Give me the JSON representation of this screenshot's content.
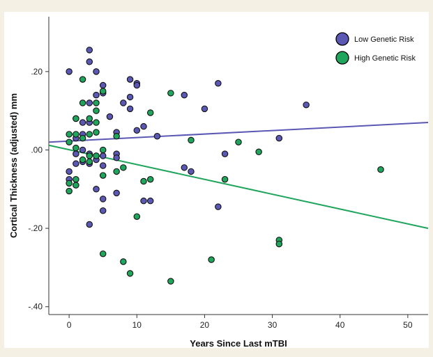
{
  "chart_data": {
    "type": "scatter",
    "xlabel": "Years Since Last mTBI",
    "ylabel": "Cortical Thickness (adjusted) mm",
    "xlim": [
      -3,
      53
    ],
    "ylim": [
      -0.42,
      0.34
    ],
    "xticks": [
      0,
      10,
      20,
      30,
      40,
      50
    ],
    "xtick_labels": [
      "0",
      "10",
      "20",
      "30",
      "40",
      "50"
    ],
    "yticks": [
      0.2,
      0.0,
      -0.2,
      -0.4
    ],
    "ytick_labels": [
      ".20",
      ".00",
      "-.20",
      "-.40"
    ],
    "grid": false,
    "legend": "top-right",
    "series": [
      {
        "name": "Low Genetic Risk",
        "color": "#5b58b4",
        "fit": {
          "x": [
            -3,
            53
          ],
          "y": [
            0.02,
            0.07
          ]
        },
        "points": [
          [
            0,
            0.2
          ],
          [
            0,
            -0.055
          ],
          [
            0,
            -0.075
          ],
          [
            1,
            0.08
          ],
          [
            1,
            -0.035
          ],
          [
            1,
            -0.01
          ],
          [
            1,
            0.03
          ],
          [
            2,
            0.07
          ],
          [
            2,
            0.04
          ],
          [
            2,
            0.0
          ],
          [
            2,
            -0.03
          ],
          [
            3,
            0.255
          ],
          [
            3,
            0.225
          ],
          [
            3,
            0.12
          ],
          [
            3,
            0.07
          ],
          [
            3,
            -0.01
          ],
          [
            3,
            -0.035
          ],
          [
            3,
            -0.19
          ],
          [
            4,
            0.2
          ],
          [
            4,
            0.14
          ],
          [
            4,
            -0.025
          ],
          [
            4,
            -0.1
          ],
          [
            5,
            0.165
          ],
          [
            5,
            0.145
          ],
          [
            5,
            -0.015
          ],
          [
            5,
            -0.04
          ],
          [
            5,
            -0.125
          ],
          [
            5,
            -0.155
          ],
          [
            6,
            0.085
          ],
          [
            7,
            0.045
          ],
          [
            7,
            -0.01
          ],
          [
            7,
            -0.02
          ],
          [
            7,
            -0.11
          ],
          [
            8,
            0.12
          ],
          [
            9,
            0.18
          ],
          [
            9,
            0.135
          ],
          [
            9,
            0.105
          ],
          [
            10,
            0.17
          ],
          [
            10,
            0.165
          ],
          [
            10,
            0.05
          ],
          [
            11,
            0.06
          ],
          [
            11,
            -0.13
          ],
          [
            12,
            -0.13
          ],
          [
            13,
            0.035
          ],
          [
            17,
            0.14
          ],
          [
            17,
            -0.045
          ],
          [
            18,
            -0.055
          ],
          [
            20,
            0.105
          ],
          [
            22,
            0.17
          ],
          [
            22,
            -0.145
          ],
          [
            23,
            -0.01
          ],
          [
            31,
            0.03
          ],
          [
            35,
            0.115
          ]
        ]
      },
      {
        "name": "High Genetic Risk",
        "color": "#1fa55c",
        "fit": {
          "x": [
            -3,
            53
          ],
          "y": [
            0.012,
            -0.2
          ]
        },
        "points": [
          [
            0,
            0.04
          ],
          [
            0,
            0.02
          ],
          [
            0,
            -0.085
          ],
          [
            0,
            -0.105
          ],
          [
            1,
            0.08
          ],
          [
            1,
            0.04
          ],
          [
            1,
            0.005
          ],
          [
            1,
            -0.075
          ],
          [
            1,
            -0.09
          ],
          [
            2,
            0.18
          ],
          [
            2,
            0.12
          ],
          [
            2,
            0.03
          ],
          [
            2,
            -0.025
          ],
          [
            3,
            0.08
          ],
          [
            3,
            0.04
          ],
          [
            3,
            -0.015
          ],
          [
            3,
            -0.03
          ],
          [
            4,
            0.12
          ],
          [
            4,
            0.1
          ],
          [
            4,
            0.07
          ],
          [
            4,
            0.045
          ],
          [
            4,
            -0.015
          ],
          [
            5,
            0.15
          ],
          [
            5,
            0.0
          ],
          [
            5,
            -0.065
          ],
          [
            5,
            -0.265
          ],
          [
            7,
            0.035
          ],
          [
            7,
            -0.055
          ],
          [
            8,
            -0.045
          ],
          [
            8,
            -0.285
          ],
          [
            9,
            -0.315
          ],
          [
            10,
            -0.17
          ],
          [
            11,
            -0.08
          ],
          [
            12,
            0.095
          ],
          [
            12,
            -0.075
          ],
          [
            15,
            0.145
          ],
          [
            15,
            -0.335
          ],
          [
            18,
            0.025
          ],
          [
            21,
            -0.28
          ],
          [
            23,
            -0.075
          ],
          [
            25,
            0.02
          ],
          [
            28,
            -0.005
          ],
          [
            31,
            -0.23
          ],
          [
            31,
            -0.24
          ],
          [
            46,
            -0.05
          ]
        ]
      }
    ]
  }
}
